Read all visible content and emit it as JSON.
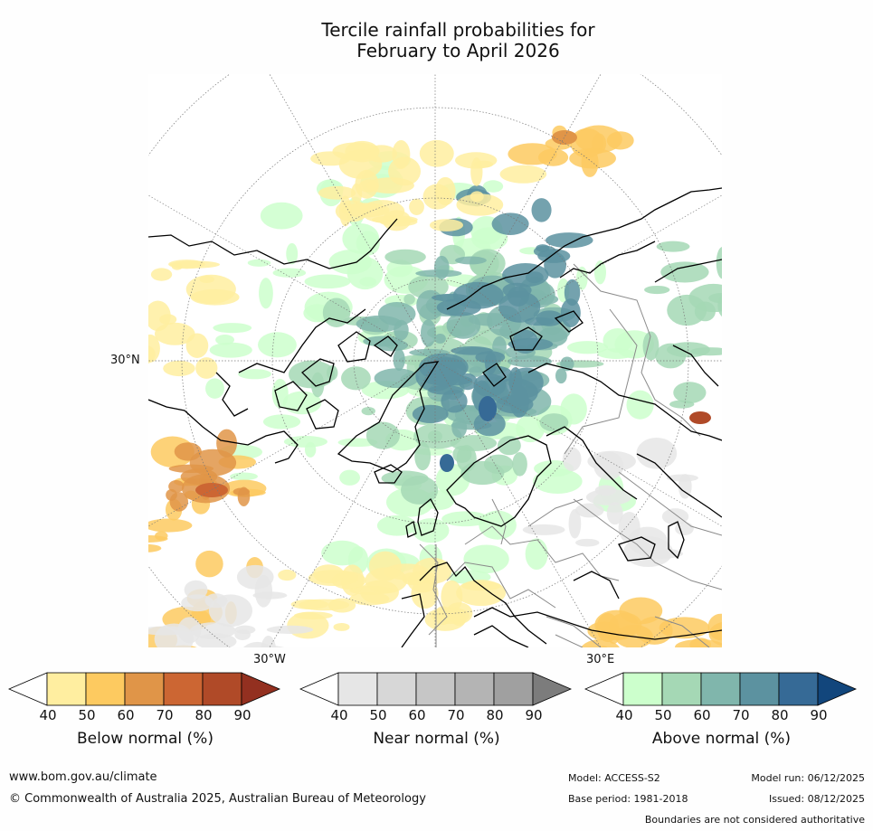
{
  "title": {
    "line1": "Tercile rainfall probabilities for",
    "line2": "February to April 2026"
  },
  "map": {
    "projection": "north polar stereographic",
    "labels": {
      "lat": "30°N",
      "lon_west": "30°W",
      "lon_east": "30°E"
    },
    "colors": {
      "below": [
        "#ffeea0",
        "#fdca60",
        "#e09548",
        "#cc6633",
        "#b04a28",
        "#933020"
      ],
      "near": [
        "#e6e6e6",
        "#d7d7d7",
        "#c6c6c6",
        "#b4b4b4",
        "#a0a0a0",
        "#7c7c7c"
      ],
      "above": [
        "#ccffcc",
        "#a5d8b5",
        "#80b6ac",
        "#5c92a0",
        "#366a96",
        "#12467c"
      ],
      "coastline": "#000000",
      "border": "#8a8a8a",
      "grid": "#777777"
    }
  },
  "colorbars": [
    {
      "caption": "Below normal (%)",
      "ticks": [
        "40",
        "50",
        "60",
        "70",
        "80",
        "90"
      ]
    },
    {
      "caption": "Near normal (%)",
      "ticks": [
        "40",
        "50",
        "60",
        "70",
        "80",
        "90"
      ]
    },
    {
      "caption": "Above normal (%)",
      "ticks": [
        "40",
        "50",
        "60",
        "70",
        "80",
        "90"
      ]
    }
  ],
  "footer": {
    "website": "www.bom.gov.au/climate",
    "copyright": "© Commonwealth of Australia 2025, Australian Bureau of Meteorology",
    "model": "Model: ACCESS-S2",
    "base_period": "Base period: 1981-2018",
    "model_run": "Model run: 06/12/2025",
    "issued": "Issued: 08/12/2025",
    "disclaimer": "Boundaries are not considered authoritative"
  }
}
